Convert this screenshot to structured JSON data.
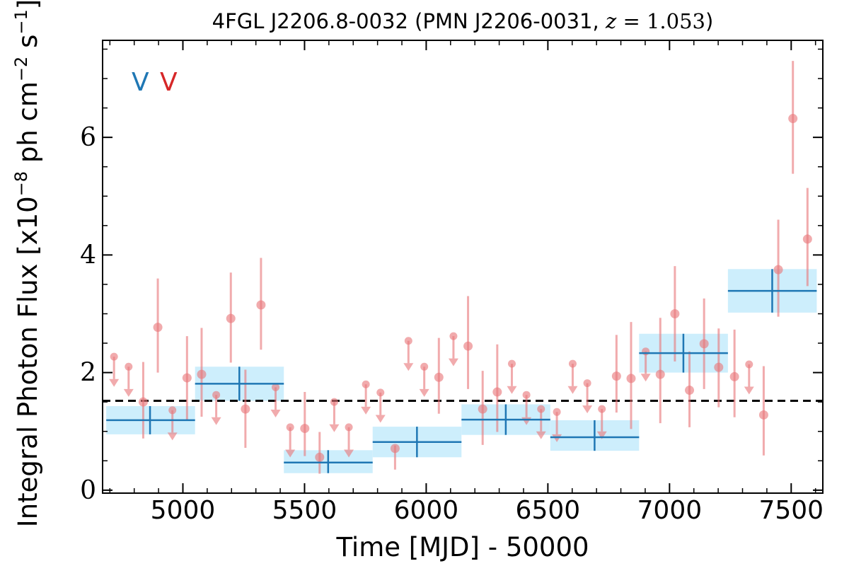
{
  "chart_data": {
    "type": "scatter",
    "title": {
      "prefix": "4FGL J2206.8-0032 (PMN J2206-0031, ",
      "var": "z",
      "eq": " = ",
      "value": "1.053",
      "suffix": ")"
    },
    "xlabel": "Time [MJD] - 50000",
    "ylabel": {
      "prefix": "Integral Photon Flux [x10",
      "exp1": "−8",
      "mid": " ph cm",
      "exp2": "−2",
      "mid2": " s",
      "exp3": "−1",
      "suffix": "]"
    },
    "xlim": [
      4670,
      7630
    ],
    "ylim": [
      -0.05,
      7.65
    ],
    "xticks": [
      "5000",
      "5500",
      "6000",
      "6500",
      "7000",
      "7500"
    ],
    "xtick_values": [
      5000,
      5500,
      6000,
      6500,
      7000,
      7500
    ],
    "yticks": [
      "0",
      "2",
      "4",
      "6"
    ],
    "ytick_values": [
      0,
      2,
      4,
      6
    ],
    "average_flux": 1.52,
    "tags": [
      {
        "text": "V",
        "color": "#1f77b4"
      },
      {
        "text": "V",
        "color": "#d62728"
      }
    ],
    "colors": {
      "bins": "#1f77b4",
      "bin_band": "#cdeefc",
      "points": "#e8777a",
      "average": "#000000"
    },
    "binned": [
      {
        "x0": 4685,
        "x1": 5050,
        "x": 4865,
        "y": 1.19,
        "ylo": 0.95,
        "yhi": 1.43
      },
      {
        "x0": 5050,
        "x1": 5415,
        "x": 5232,
        "y": 1.81,
        "ylo": 1.52,
        "yhi": 2.1
      },
      {
        "x0": 5415,
        "x1": 5780,
        "x": 5597,
        "y": 0.47,
        "ylo": 0.29,
        "yhi": 0.68
      },
      {
        "x0": 5780,
        "x1": 6145,
        "x": 5962,
        "y": 0.82,
        "ylo": 0.56,
        "yhi": 1.08
      },
      {
        "x0": 6145,
        "x1": 6510,
        "x": 6327,
        "y": 1.2,
        "ylo": 0.94,
        "yhi": 1.46
      },
      {
        "x0": 6510,
        "x1": 6875,
        "x": 6692,
        "y": 0.9,
        "ylo": 0.67,
        "yhi": 1.19
      },
      {
        "x0": 6875,
        "x1": 7240,
        "x": 7057,
        "y": 2.33,
        "ylo": 2.0,
        "yhi": 2.66
      },
      {
        "x0": 7240,
        "x1": 7605,
        "x": 7422,
        "y": 3.39,
        "ylo": 3.02,
        "yhi": 3.76
      }
    ],
    "detections": [
      {
        "x": 4837,
        "y": 1.5,
        "ylo": 0.88,
        "yhi": 2.18
      },
      {
        "x": 4897,
        "y": 2.77,
        "ylo": 2.0,
        "yhi": 3.6
      },
      {
        "x": 5017,
        "y": 1.91,
        "ylo": 1.2,
        "yhi": 2.62
      },
      {
        "x": 5077,
        "y": 1.97,
        "ylo": 1.25,
        "yhi": 2.76
      },
      {
        "x": 5197,
        "y": 2.92,
        "ylo": 2.17,
        "yhi": 3.7
      },
      {
        "x": 5257,
        "y": 1.38,
        "ylo": 0.72,
        "yhi": 2.05
      },
      {
        "x": 5321,
        "y": 3.15,
        "ylo": 2.39,
        "yhi": 3.95
      },
      {
        "x": 5501,
        "y": 1.05,
        "ylo": 0.58,
        "yhi": 1.67
      },
      {
        "x": 5562,
        "y": 0.56,
        "ylo": 0.28,
        "yhi": 0.99
      },
      {
        "x": 5872,
        "y": 0.71,
        "ylo": 0.35,
        "yhi": 0.76
      },
      {
        "x": 6052,
        "y": 1.92,
        "ylo": 1.3,
        "yhi": 2.59
      },
      {
        "x": 6172,
        "y": 2.45,
        "ylo": 1.72,
        "yhi": 3.3
      },
      {
        "x": 6232,
        "y": 1.38,
        "ylo": 0.77,
        "yhi": 2.03
      },
      {
        "x": 6292,
        "y": 1.67,
        "ylo": 0.99,
        "yhi": 2.48
      },
      {
        "x": 6782,
        "y": 1.94,
        "ylo": 1.32,
        "yhi": 2.64
      },
      {
        "x": 6842,
        "y": 1.9,
        "ylo": 1.04,
        "yhi": 2.86
      },
      {
        "x": 6962,
        "y": 1.97,
        "ylo": 1.14,
        "yhi": 2.93
      },
      {
        "x": 7022,
        "y": 3.0,
        "ylo": 2.19,
        "yhi": 3.81
      },
      {
        "x": 7082,
        "y": 1.7,
        "ylo": 1.07,
        "yhi": 2.36
      },
      {
        "x": 7142,
        "y": 2.49,
        "ylo": 1.72,
        "yhi": 3.26
      },
      {
        "x": 7202,
        "y": 2.09,
        "ylo": 1.41,
        "yhi": 2.75
      },
      {
        "x": 7267,
        "y": 1.93,
        "ylo": 1.24,
        "yhi": 2.73
      },
      {
        "x": 7387,
        "y": 1.28,
        "ylo": 0.59,
        "yhi": 2.11
      },
      {
        "x": 7447,
        "y": 3.75,
        "ylo": 2.95,
        "yhi": 4.6
      },
      {
        "x": 7507,
        "y": 6.32,
        "ylo": 5.38,
        "yhi": 7.3
      },
      {
        "x": 7567,
        "y": 4.27,
        "ylo": 3.47,
        "yhi": 5.14
      }
    ],
    "upper_limits": [
      {
        "x": 4717,
        "y": 2.27
      },
      {
        "x": 4777,
        "y": 2.1
      },
      {
        "x": 4957,
        "y": 1.36
      },
      {
        "x": 5137,
        "y": 1.62
      },
      {
        "x": 5381,
        "y": 1.75
      },
      {
        "x": 5441,
        "y": 1.07
      },
      {
        "x": 5622,
        "y": 1.5
      },
      {
        "x": 5682,
        "y": 1.07
      },
      {
        "x": 5752,
        "y": 1.8
      },
      {
        "x": 5812,
        "y": 1.66
      },
      {
        "x": 5927,
        "y": 2.54
      },
      {
        "x": 5992,
        "y": 2.1
      },
      {
        "x": 6112,
        "y": 2.62
      },
      {
        "x": 6352,
        "y": 2.15
      },
      {
        "x": 6412,
        "y": 1.62
      },
      {
        "x": 6472,
        "y": 1.38
      },
      {
        "x": 6537,
        "y": 1.33
      },
      {
        "x": 6602,
        "y": 2.15
      },
      {
        "x": 6662,
        "y": 1.82
      },
      {
        "x": 6722,
        "y": 1.38
      },
      {
        "x": 6902,
        "y": 2.36
      },
      {
        "x": 7327,
        "y": 2.14
      }
    ]
  }
}
